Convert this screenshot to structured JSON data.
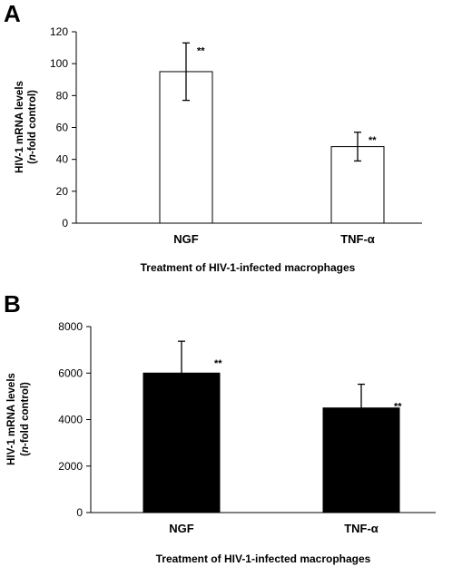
{
  "chart_data": [
    {
      "panel": "A",
      "type": "bar",
      "categories": [
        "NGF",
        "TNF-α"
      ],
      "values": [
        95,
        48
      ],
      "error": [
        18,
        9
      ],
      "annotations": [
        "**",
        "**"
      ],
      "bar_fill": "#ffffff",
      "ylabel_line1": "HIV-1 mRNA levels",
      "ylabel_line2_pre": "(",
      "ylabel_line2_italic": "n",
      "ylabel_line2_post": "-fold control)",
      "xlabel": "Treatment of HIV-1-infected macrophages",
      "ylim": [
        0,
        120
      ],
      "yticks": [
        0,
        20,
        40,
        60,
        80,
        100,
        120
      ],
      "grid": false
    },
    {
      "panel": "B",
      "type": "bar",
      "categories": [
        "NGF",
        "TNF-α"
      ],
      "values": [
        6000,
        4500
      ],
      "error": [
        1370,
        1020
      ],
      "annotations": [
        "**",
        "**"
      ],
      "bar_fill": "#000000",
      "ylabel_line1": "HIV-1 mRNA levels",
      "ylabel_line2_pre": "(",
      "ylabel_line2_italic": "n",
      "ylabel_line2_post": "-fold control)",
      "xlabel": "Treatment of HIV-1-infected macrophages",
      "ylim": [
        0,
        8000
      ],
      "yticks": [
        0,
        2000,
        4000,
        6000,
        8000
      ],
      "grid": false
    }
  ]
}
